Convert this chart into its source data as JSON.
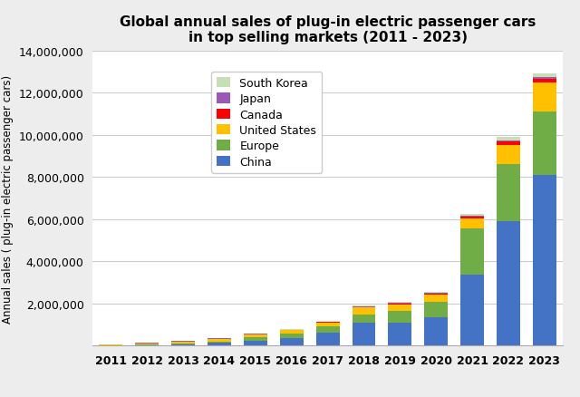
{
  "title": "Global annual sales of plug-in electric passenger cars\nin top selling markets (2011 - 2023)",
  "ylabel": "Annual sales ( plug-in electric passenger cars)",
  "years": [
    2011,
    2012,
    2013,
    2014,
    2015,
    2016,
    2017,
    2018,
    2019,
    2020,
    2021,
    2022,
    2023
  ],
  "series": {
    "China": [
      8000,
      11000,
      48000,
      121000,
      207000,
      336000,
      579000,
      1056000,
      1065000,
      1337000,
      3340000,
      5920000,
      8100000
    ],
    "Europe": [
      7000,
      18000,
      32000,
      65000,
      193000,
      222000,
      307000,
      388000,
      561000,
      740000,
      2200000,
      2700000,
      3000000
    ],
    "United States": [
      17000,
      53000,
      97000,
      119000,
      115000,
      159000,
      195000,
      361000,
      326000,
      328000,
      490000,
      920000,
      1400000
    ],
    "Canada": [
      1000,
      2000,
      4000,
      5000,
      7000,
      10000,
      15000,
      23000,
      40000,
      45000,
      75000,
      140000,
      170000
    ],
    "Japan": [
      20000,
      28000,
      28000,
      26000,
      27000,
      21000,
      25000,
      33000,
      38000,
      29000,
      40000,
      60000,
      80000
    ],
    "South Korea": [
      1000,
      2000,
      3000,
      4000,
      5000,
      8000,
      14000,
      31000,
      34000,
      47000,
      85000,
      162000,
      170000
    ]
  },
  "colors": {
    "China": "#4472C4",
    "Europe": "#70AD47",
    "United States": "#FFC000",
    "Canada": "#FF0000",
    "Japan": "#9B59B6",
    "South Korea": "#C6E0B4"
  },
  "ylim": [
    0,
    14000000
  ],
  "yticks": [
    2000000,
    4000000,
    6000000,
    8000000,
    10000000,
    12000000,
    14000000
  ],
  "background_color": "#EDEDED",
  "plot_background_color": "#FFFFFF",
  "legend_order": [
    "South Korea",
    "Japan",
    "Canada",
    "United States",
    "Europe",
    "China"
  ]
}
